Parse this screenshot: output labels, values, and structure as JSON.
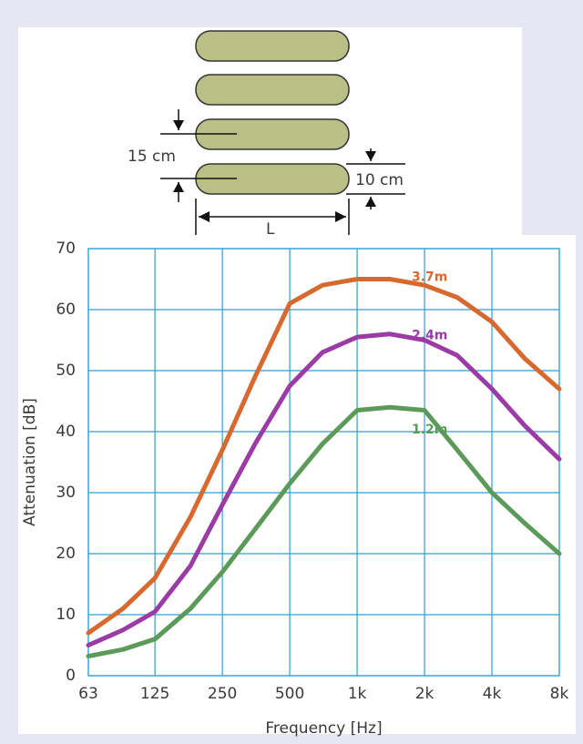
{
  "diagram": {
    "labels": [
      "15 cm",
      "10 cm",
      "L"
    ]
  },
  "chart_data": {
    "type": "line",
    "xlabel": "Frequency [Hz]",
    "ylabel": "Attenuation [dB]",
    "x": [
      63,
      90,
      125,
      180,
      250,
      350,
      500,
      700,
      1000,
      1400,
      2000,
      2800,
      4000,
      5600,
      8000
    ],
    "xscale": "log",
    "xlim": [
      63,
      8000
    ],
    "xticks": [
      63,
      125,
      250,
      500,
      {
        "value": 1000,
        "label": "1k"
      },
      {
        "value": 2000,
        "label": "2k"
      },
      {
        "value": 4000,
        "label": "4k"
      },
      {
        "value": 8000,
        "label": "8k"
      }
    ],
    "ylim": [
      0,
      70
    ],
    "yticks": [
      0,
      10,
      20,
      30,
      40,
      50,
      60,
      70
    ],
    "grid": true,
    "series": [
      {
        "name": "3.7m",
        "color": "#d7692e",
        "values": [
          7,
          11,
          16,
          26,
          37,
          49,
          61,
          64,
          65,
          65,
          64,
          62,
          58,
          52,
          47
        ]
      },
      {
        "name": "2.4m",
        "color": "#9a3ba6",
        "values": [
          5,
          7.5,
          10.5,
          18,
          28,
          38,
          47.5,
          53,
          55.5,
          56,
          55,
          52.5,
          47,
          41,
          35.5
        ]
      },
      {
        "name": "1.2m",
        "color": "#5c9a5a",
        "values": [
          3.2,
          4.3,
          6,
          11,
          17,
          24,
          31.5,
          38,
          43.5,
          44,
          43.5,
          37,
          30,
          25,
          20
        ]
      }
    ]
  }
}
